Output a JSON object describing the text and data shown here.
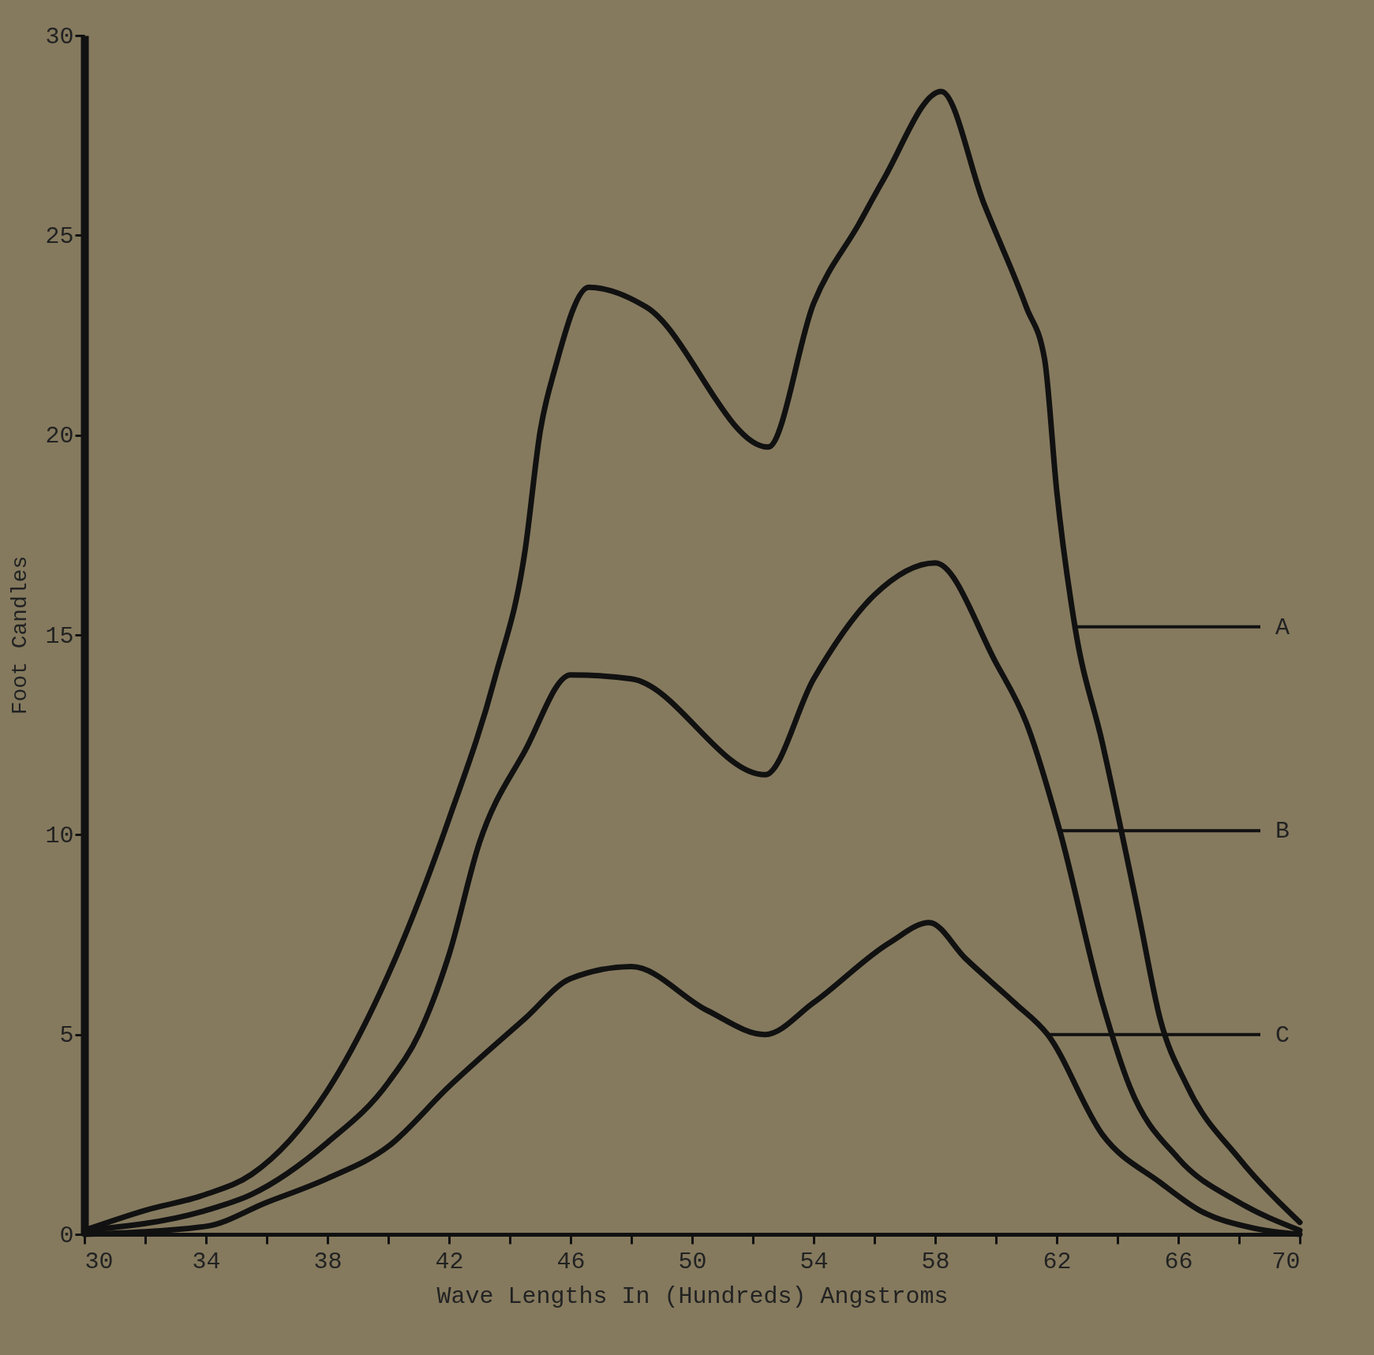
{
  "chart_data": {
    "type": "line",
    "xlabel": "Wave Lengths In (Hundreds) Angstroms",
    "ylabel": "Foot Candles",
    "xlim": [
      30,
      70
    ],
    "ylim": [
      0,
      30
    ],
    "xticks": [
      30,
      {
        "value": 32,
        "label": null
      },
      34,
      {
        "value": 36,
        "label": null
      },
      38,
      {
        "value": 40,
        "label": null
      },
      42,
      {
        "value": 44,
        "label": null
      },
      46,
      {
        "value": 48,
        "label": null
      },
      50,
      {
        "value": 52,
        "label": null
      },
      54,
      {
        "value": 56,
        "label": null
      },
      58,
      {
        "value": 60,
        "label": null
      },
      62,
      {
        "value": 64,
        "label": null
      },
      66,
      {
        "value": 68,
        "label": null
      },
      70
    ],
    "yticks": [
      0,
      5,
      10,
      15,
      20,
      25,
      30
    ],
    "grid": false,
    "legend": false,
    "marker": "none",
    "line_style": "solid",
    "series": [
      {
        "color": "#111111",
        "x": [
          30,
          32,
          34,
          35.5,
          38,
          40,
          42,
          43.5,
          44.5,
          45,
          45.5,
          46.6,
          48.5,
          52.5,
          54,
          55.5,
          56.3,
          58.2,
          59.6,
          61,
          61.6,
          62,
          62.6,
          63.5,
          64.7,
          65.4,
          66.3,
          68,
          70
        ],
        "values": [
          0.1,
          0.6,
          1.0,
          1.5,
          3.6,
          6.5,
          10.4,
          13.9,
          17.1,
          20.1,
          21.7,
          23.7,
          23.2,
          19.7,
          23.3,
          25.3,
          26.4,
          28.6,
          25.8,
          23.2,
          21.9,
          18.6,
          15.2,
          12.3,
          8.0,
          5.4,
          3.7,
          1.9,
          0.3
        ]
      },
      {
        "color": "#111111",
        "x": [
          30,
          34,
          35.5,
          38,
          40,
          41,
          42,
          43,
          44.5,
          46,
          48,
          52.4,
          54,
          56,
          58,
          60,
          61,
          62.1,
          63.5,
          64.4,
          66,
          68,
          70
        ],
        "values": [
          0.1,
          0.6,
          1.0,
          2.3,
          3.8,
          5.0,
          7.0,
          9.8,
          12.1,
          14.0,
          13.9,
          11.5,
          13.9,
          16.0,
          16.8,
          14.3,
          12.8,
          10.1,
          5.8,
          3.7,
          1.9,
          0.8,
          0.1
        ]
      },
      {
        "color": "#111111",
        "x": [
          30,
          34,
          36,
          38,
          40,
          42,
          44.5,
          46,
          48,
          50.5,
          52.4,
          54,
          56.5,
          57.8,
          59,
          60.6,
          61.7,
          63.5,
          65.4,
          66.7,
          68.5,
          70
        ],
        "values": [
          0,
          0.2,
          0.8,
          1.4,
          2.2,
          3.7,
          5.4,
          6.4,
          6.7,
          5.6,
          5.0,
          5.8,
          7.3,
          7.8,
          6.9,
          5.8,
          5.0,
          2.5,
          1.3,
          0.6,
          0.15,
          0
        ]
      }
    ],
    "annotations": [
      {
        "text": "A",
        "x": 62.6,
        "y": 15.2
      },
      {
        "text": "B",
        "x": 62.1,
        "y": 10.1
      },
      {
        "text": "C",
        "x": 61.7,
        "y": 5.0
      }
    ]
  }
}
